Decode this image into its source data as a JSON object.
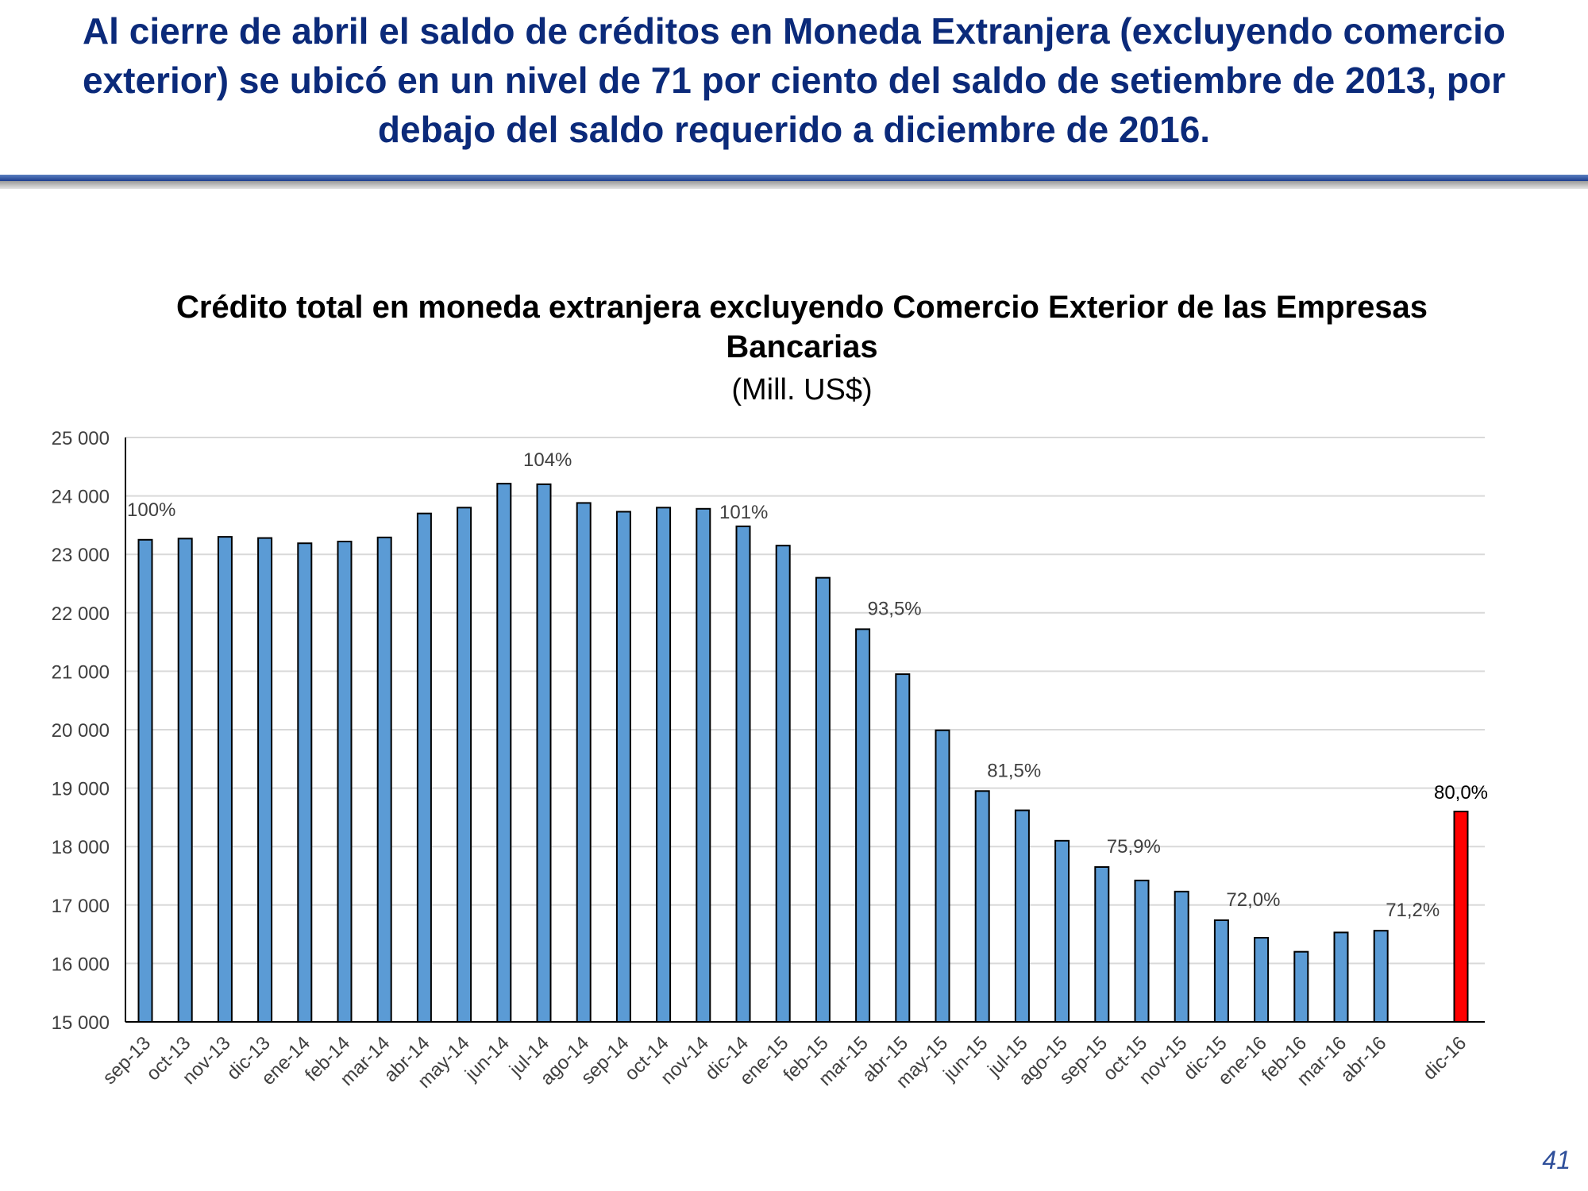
{
  "header": {
    "title": "Al cierre de abril el saldo de créditos en Moneda Extranjera (excluyendo comercio exterior) se ubicó en un nivel de 71 por ciento del saldo de setiembre de 2013, por debajo del saldo requerido a diciembre de 2016."
  },
  "page_number": "41",
  "colors": {
    "bar": "#5b9bd5",
    "target_bar": "#ff0000",
    "title": "#0b2a7a",
    "grid": "#d9d9d9"
  },
  "chart_data": {
    "type": "bar",
    "title": "Crédito total en moneda extranjera excluyendo Comercio Exterior de las Empresas Bancarias",
    "subtitle": "(Mill. US$)",
    "xlabel": "",
    "ylabel": "",
    "ylim": [
      15000,
      25000
    ],
    "yticks": [
      "15 000",
      "16 000",
      "17 000",
      "18 000",
      "19 000",
      "20 000",
      "21 000",
      "22 000",
      "23 000",
      "24 000",
      "25 000"
    ],
    "grid": true,
    "categories": [
      "sep-13",
      "oct-13",
      "nov-13",
      "dic-13",
      "ene-14",
      "feb-14",
      "mar-14",
      "abr-14",
      "may-14",
      "jun-14",
      "jul-14",
      "ago-14",
      "sep-14",
      "oct-14",
      "nov-14",
      "dic-14",
      "ene-15",
      "feb-15",
      "mar-15",
      "abr-15",
      "may-15",
      "jun-15",
      "jul-15",
      "ago-15",
      "sep-15",
      "oct-15",
      "nov-15",
      "dic-15",
      "ene-16",
      "feb-16",
      "mar-16",
      "abr-16",
      "dic-16"
    ],
    "values": [
      23250,
      23270,
      23300,
      23280,
      23190,
      23220,
      23290,
      23700,
      23800,
      24210,
      24200,
      23880,
      23730,
      23800,
      23780,
      23480,
      23150,
      22600,
      21720,
      20950,
      19990,
      18950,
      18620,
      18100,
      17650,
      17420,
      17230,
      16740,
      16440,
      16200,
      16530,
      16560,
      18600
    ],
    "highlight_index": 32,
    "annotations": [
      {
        "index": 0,
        "text": "100%"
      },
      {
        "index": 10,
        "text": "104%"
      },
      {
        "index": 15,
        "text": "101%"
      },
      {
        "index": 18,
        "text": "93,5%"
      },
      {
        "index": 21,
        "text": "81,5%"
      },
      {
        "index": 24,
        "text": "75,9%"
      },
      {
        "index": 27,
        "text": "72,0%"
      },
      {
        "index": 31,
        "text": "71,2%"
      },
      {
        "index": 32,
        "text": "80,0%"
      }
    ]
  }
}
